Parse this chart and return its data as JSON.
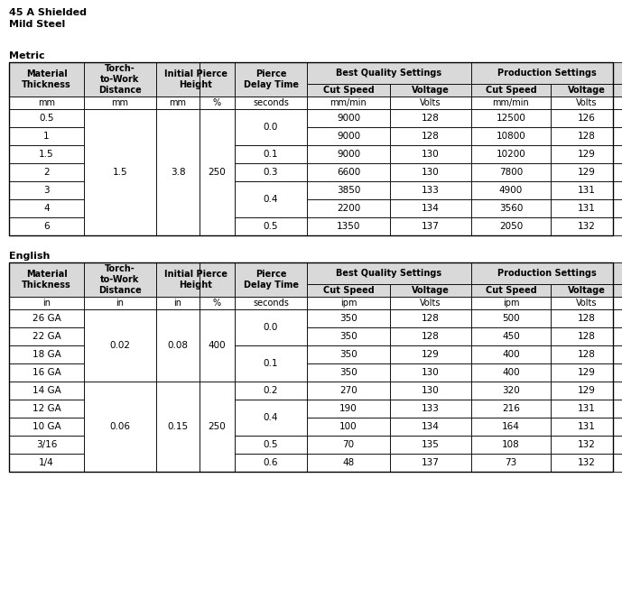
{
  "title_line1": "45 A Shielded",
  "title_line2": "Mild Steel",
  "metric_label": "Metric",
  "english_label": "English",
  "metric_units": [
    "mm",
    "mm",
    "mm",
    "%",
    "seconds",
    "mm/min",
    "Volts",
    "mm/min",
    "Volts"
  ],
  "metric_data": [
    [
      "0.5",
      "9000",
      "128",
      "12500",
      "126"
    ],
    [
      "1",
      "9000",
      "128",
      "10800",
      "128"
    ],
    [
      "1.5",
      "9000",
      "130",
      "10200",
      "129"
    ],
    [
      "2",
      "6600",
      "130",
      "7800",
      "129"
    ],
    [
      "3",
      "3850",
      "133",
      "4900",
      "131"
    ],
    [
      "4",
      "2200",
      "134",
      "3560",
      "131"
    ],
    [
      "6",
      "1350",
      "137",
      "2050",
      "132"
    ]
  ],
  "metric_pierce_delays": [
    "0.0",
    "0.0",
    "0.1",
    "0.3",
    "0.4",
    "0.4",
    "0.5"
  ],
  "metric_pierce_spans": [
    [
      0,
      2,
      "0.0"
    ],
    [
      2,
      1,
      "0.1"
    ],
    [
      3,
      1,
      "0.3"
    ],
    [
      4,
      2,
      "0.4"
    ],
    [
      6,
      1,
      "0.5"
    ]
  ],
  "metric_tw": [
    [
      0,
      7,
      "1.5"
    ]
  ],
  "metric_iph_mm": [
    [
      0,
      7,
      "3.8"
    ]
  ],
  "metric_iph_pct": [
    [
      0,
      7,
      "250"
    ]
  ],
  "english_units": [
    "in",
    "in",
    "in",
    "%",
    "seconds",
    "ipm",
    "Volts",
    "ipm",
    "Volts"
  ],
  "english_data": [
    [
      "26 GA",
      "350",
      "128",
      "500",
      "128"
    ],
    [
      "22 GA",
      "350",
      "128",
      "450",
      "128"
    ],
    [
      "18 GA",
      "350",
      "129",
      "400",
      "128"
    ],
    [
      "16 GA",
      "350",
      "130",
      "400",
      "129"
    ],
    [
      "14 GA",
      "270",
      "130",
      "320",
      "129"
    ],
    [
      "12 GA",
      "190",
      "133",
      "216",
      "131"
    ],
    [
      "10 GA",
      "100",
      "134",
      "164",
      "131"
    ],
    [
      "3/16",
      "70",
      "135",
      "108",
      "132"
    ],
    [
      "1/4",
      "48",
      "137",
      "73",
      "132"
    ]
  ],
  "english_pierce_spans": [
    [
      0,
      2,
      "0.0"
    ],
    [
      2,
      2,
      "0.1"
    ],
    [
      4,
      1,
      "0.2"
    ],
    [
      5,
      2,
      "0.4"
    ],
    [
      7,
      1,
      "0.5"
    ],
    [
      8,
      1,
      "0.6"
    ]
  ],
  "english_tw": [
    [
      0,
      4,
      "0.02"
    ],
    [
      4,
      5,
      "0.06"
    ]
  ],
  "english_iph_mm": [
    [
      0,
      4,
      "0.08"
    ],
    [
      4,
      5,
      "0.15"
    ]
  ],
  "english_iph_pct": [
    [
      0,
      4,
      "400"
    ],
    [
      4,
      5,
      "250"
    ]
  ],
  "bg_color": "#ffffff",
  "header_bg": "#d9d9d9",
  "text_color": "#000000"
}
